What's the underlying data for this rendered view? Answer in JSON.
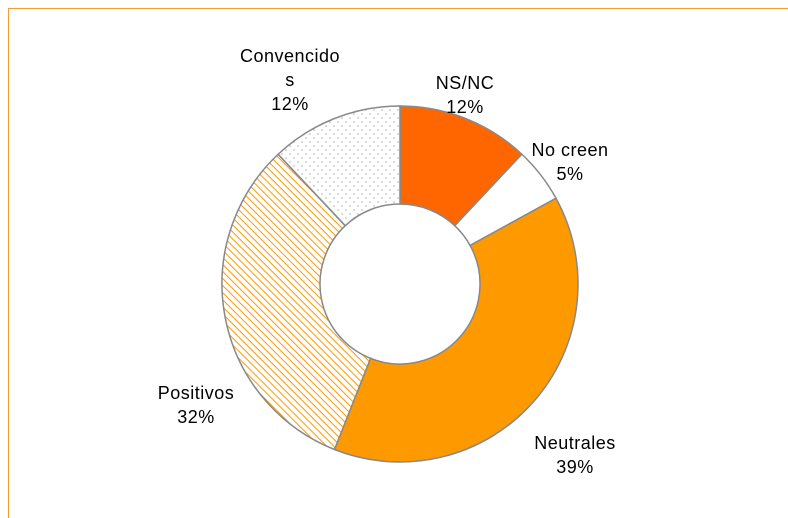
{
  "chart_data": {
    "type": "donut",
    "categories": [
      "NS/NC",
      "No creen",
      "Neutrales",
      "Positivos",
      "Convencidos"
    ],
    "values": [
      12,
      5,
      39,
      32,
      12
    ],
    "value_labels": [
      "12%",
      "5%",
      "39%",
      "32%",
      "12%"
    ],
    "colors": [
      "#ff6600",
      "#ffffff",
      "#ff9900",
      "#ff9900",
      "#b0b0b0"
    ],
    "patterns": [
      "solid",
      "solid",
      "solid",
      "hatch",
      "dots"
    ]
  }
}
